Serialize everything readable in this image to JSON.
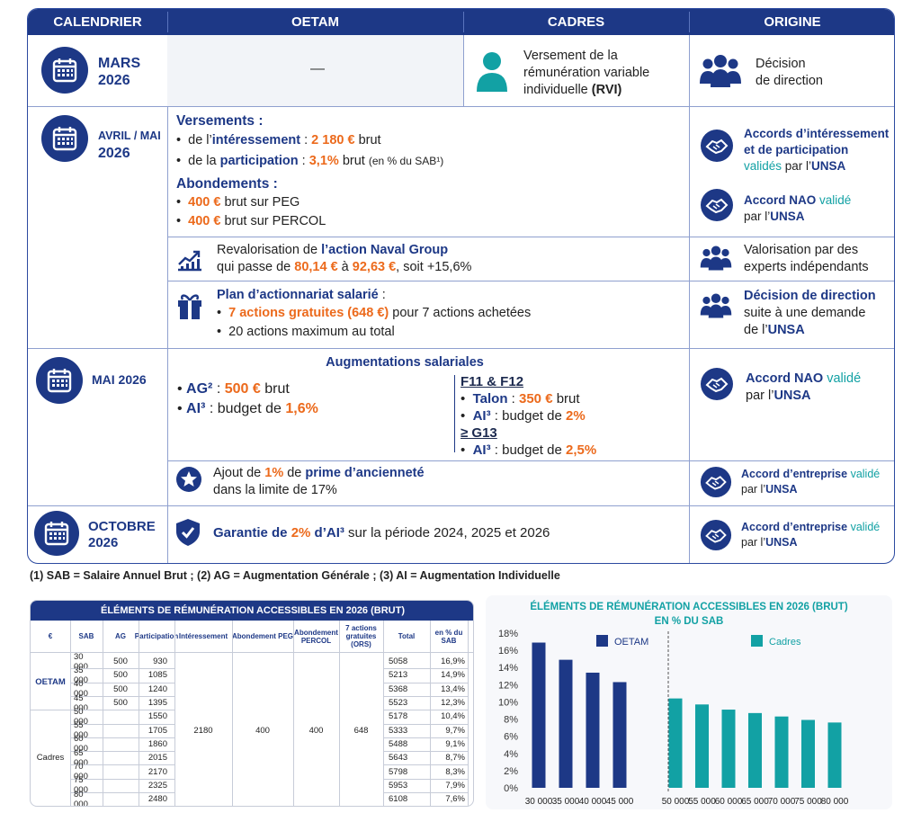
{
  "calendar": {
    "headers": {
      "calendrier": "CALENDRIER",
      "oetam": "OETAM",
      "cadres": "CADRES",
      "origine": "ORIGINE"
    },
    "mars": {
      "month_line1": "MARS",
      "month_line2": "2026",
      "oetam": "—",
      "cadres_text": "Versement de la rémunération variable individuelle",
      "cadres_bold": "(RVI)",
      "origine_line1": "Décision",
      "origine_line2": "de direction"
    },
    "avril": {
      "month_line1": "AVRIL / MAI",
      "month_line2": "2026",
      "versements_title": "Versements :",
      "v1_a": "de l’",
      "v1_b": "intéressement",
      "v1_c": " : ",
      "v1_d": "2 180 €",
      "v1_e": " brut",
      "v2_a": "de la ",
      "v2_b": "participation",
      "v2_c": " : ",
      "v2_d": "3,1%",
      "v2_e": " brut ",
      "v2_f": "(en % du SAB¹)",
      "abondements_title": "Abondements :",
      "a1_a": "400 €",
      "a1_b": " brut sur PEG",
      "a2_a": "400 €",
      "a2_b": " brut sur PERCOL",
      "origine1_l1": "Accords d’intéressement",
      "origine1_l2a": "et de participation",
      "origine1_l3a": "validés",
      "origine1_l3b": " par l’",
      "origine1_l3c": "UNSA",
      "origine2_l1a": "Accord NAO",
      "origine2_l1b": " validé",
      "origine2_l2a": "par l’",
      "origine2_l2b": "UNSA",
      "action_l1a": "Revalorisation de ",
      "action_l1b": "l’action Naval Group",
      "action_l2a": "qui passe de ",
      "action_l2b": "80,14 €",
      "action_l2c": " à ",
      "action_l2d": "92,63 €",
      "action_l2e": ", soit +15,6%",
      "action_origine_l1": "Valorisation par des",
      "action_origine_l2": "experts indépendants",
      "plan_title": "Plan d’actionnariat salarié",
      "plan_colon": " :",
      "plan_b1a": "7 actions gratuites (648 €)",
      "plan_b1b": " pour 7 actions achetées",
      "plan_b2": "20 actions maximum au total",
      "plan_origine_l1": "Décision de direction",
      "plan_origine_l2": "suite à une demande",
      "plan_origine_l3a": "de l’",
      "plan_origine_l3b": "UNSA"
    },
    "mai": {
      "month": "MAI 2026",
      "aug_title": "Augmentations salariales",
      "ag_a": "AG²",
      "ag_b": " : ",
      "ag_c": "500 €",
      "ag_d": " brut",
      "ai_a": "AI³",
      "ai_b": " : budget de ",
      "ai_c": "1,6%",
      "f_title": "F11 & F12",
      "talon_a": "Talon",
      "talon_b": " : ",
      "talon_c": "350 €",
      "talon_d": " brut",
      "fai_a": "AI³",
      "fai_b": " : budget de ",
      "fai_c": "2%",
      "g_title": "≥ G13",
      "gai_a": "AI³",
      "gai_b": " : budget de ",
      "gai_c": "2,5%",
      "origine_l1a": "Accord NAO",
      "origine_l1b": " validé",
      "origine_l2a": "par l’",
      "origine_l2b": "UNSA",
      "anc_l1a": "Ajout de ",
      "anc_l1b": "1%",
      "anc_l1c": " de ",
      "anc_l1d": "prime d’ancienneté",
      "anc_l2": "dans la limite de 17%",
      "anc_origine_l1a": "Accord d’entreprise",
      "anc_origine_l1b": " validé",
      "anc_origine_l2a": "par l’",
      "anc_origine_l2b": "UNSA"
    },
    "octobre": {
      "month_line1": "OCTOBRE",
      "month_line2": "2026",
      "text_a": "Garantie de ",
      "text_b": "2%",
      "text_c": " d’AI³",
      "text_d": " sur la période 2024, 2025 et 2026",
      "origine_l1a": "Accord d’entreprise",
      "origine_l1b": " validé",
      "origine_l2a": "par l’",
      "origine_l2b": "UNSA"
    },
    "footnote": "(1) SAB = Salaire Annuel Brut ; (2) AG = Augmentation Générale ; (3) AI = Augmentation Individuelle"
  },
  "table": {
    "title": "ÉLÉMENTS DE RÉMUNÉRATION ACCESSIBLES EN 2026 (BRUT)",
    "headers": [
      "€",
      "SAB",
      "AG",
      "Participation",
      "Intéressement",
      "Abondement PEG",
      "Abondement PERCOL",
      "7 actions gratuites (ORS)",
      "Total",
      "en % du SAB"
    ],
    "group_oetam": "OETAM",
    "group_cadres": "Cadres",
    "shared": {
      "interessement": "2180",
      "peg": "400",
      "percol": "400",
      "actions": "648"
    },
    "rows": [
      {
        "sab": "30 000",
        "ag": "500",
        "participation": "930",
        "total": "5058",
        "pct": "16,9%"
      },
      {
        "sab": "35 000",
        "ag": "500",
        "participation": "1085",
        "total": "5213",
        "pct": "14,9%"
      },
      {
        "sab": "40 000",
        "ag": "500",
        "participation": "1240",
        "total": "5368",
        "pct": "13,4%"
      },
      {
        "sab": "45 000",
        "ag": "500",
        "participation": "1395",
        "total": "5523",
        "pct": "12,3%"
      },
      {
        "sab": "50 000",
        "ag": "",
        "participation": "1550",
        "total": "5178",
        "pct": "10,4%"
      },
      {
        "sab": "55 000",
        "ag": "",
        "participation": "1705",
        "total": "5333",
        "pct": "9,7%"
      },
      {
        "sab": "60 000",
        "ag": "",
        "participation": "1860",
        "total": "5488",
        "pct": "9,1%"
      },
      {
        "sab": "65 000",
        "ag": "",
        "participation": "2015",
        "total": "5643",
        "pct": "8,7%"
      },
      {
        "sab": "70 000",
        "ag": "",
        "participation": "2170",
        "total": "5798",
        "pct": "8,3%"
      },
      {
        "sab": "75 000",
        "ag": "",
        "participation": "2325",
        "total": "5953",
        "pct": "7,9%"
      },
      {
        "sab": "80 000",
        "ag": "",
        "participation": "2480",
        "total": "6108",
        "pct": "7,6%"
      }
    ]
  },
  "chart_data": {
    "type": "bar",
    "title": "ÉLÉMENTS DE RÉMUNÉRATION ACCESSIBLES EN 2026 (BRUT)",
    "subtitle": "EN % DU SAB",
    "ylim": [
      0,
      18
    ],
    "yticks": [
      "0%",
      "2%",
      "4%",
      "6%",
      "8%",
      "10%",
      "12%",
      "14%",
      "16%",
      "18%"
    ],
    "grid": false,
    "series": [
      {
        "name": "OETAM",
        "color": "#1d3886",
        "categories": [
          "30 000",
          "35 000",
          "40 000",
          "45 000"
        ],
        "values": [
          16.9,
          14.9,
          13.4,
          12.3
        ]
      },
      {
        "name": "Cadres",
        "color": "#12a1a4",
        "categories": [
          "50 000",
          "55 000",
          "60 000",
          "65 000",
          "70 000",
          "75 000",
          "80 000"
        ],
        "values": [
          10.4,
          9.7,
          9.1,
          8.7,
          8.3,
          7.9,
          7.6
        ]
      }
    ]
  },
  "colors": {
    "navy": "#1d3886",
    "orange": "#ec6a1c",
    "teal": "#12a1a4"
  }
}
